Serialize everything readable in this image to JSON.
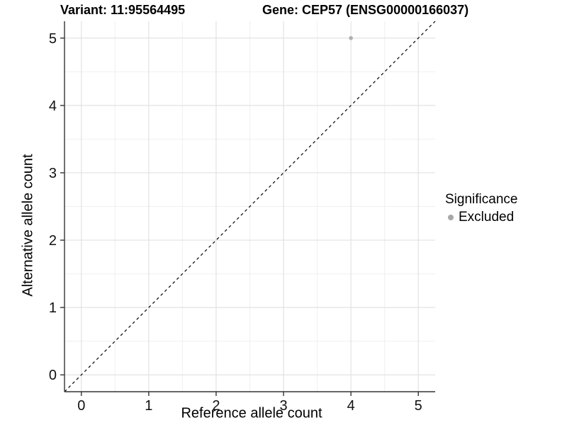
{
  "chart_data": {
    "type": "scatter",
    "title_left": "Variant: 11:95564495",
    "title_right": "Gene: CEP57 (ENSG00000166037)",
    "xlabel": "Reference allele count",
    "ylabel": "Alternative allele count",
    "xlim": [
      -0.25,
      5.25
    ],
    "ylim": [
      -0.25,
      5.25
    ],
    "xticks": [
      0,
      1,
      2,
      3,
      4,
      5
    ],
    "yticks": [
      0,
      1,
      2,
      3,
      4,
      5
    ],
    "grid": "major and minor, light gray on white",
    "points": [
      {
        "x": 4,
        "y": 5,
        "series": "Excluded"
      }
    ],
    "reference_line": {
      "slope": 1,
      "intercept": 0,
      "style": "dashed",
      "color": "#000000"
    },
    "legend": {
      "position": "right",
      "title": "Significance",
      "items": [
        {
          "label": "Excluded",
          "color": "#a8a8a8",
          "marker": "circle"
        }
      ]
    },
    "colors": {
      "point": "#b0b0b0",
      "grid_major": "#e2e2e2",
      "grid_minor": "#f0f0f0",
      "axis_line": "#333333",
      "tick_text": "#111111"
    }
  }
}
